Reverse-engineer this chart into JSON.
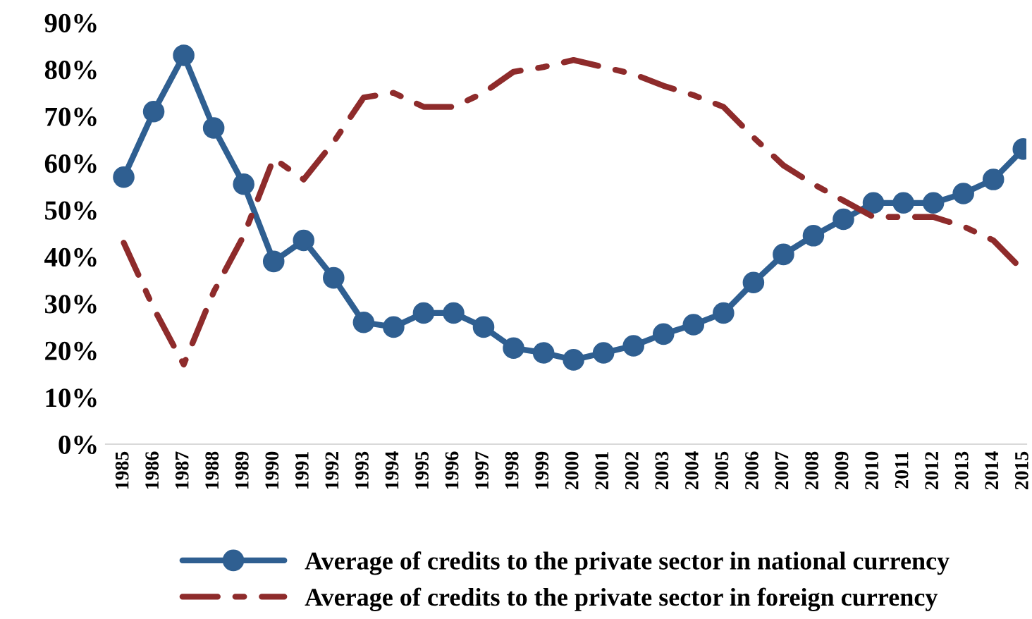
{
  "chart_data": {
    "type": "line",
    "categories": [
      "1985",
      "1986",
      "1987",
      "1988",
      "1989",
      "1990",
      "1991",
      "1992",
      "1993",
      "1994",
      "1995",
      "1996",
      "1997",
      "1998",
      "1999",
      "2000",
      "2001",
      "2002",
      "2003",
      "2004",
      "2005",
      "2006",
      "2007",
      "2008",
      "2009",
      "2010",
      "2011",
      "2012",
      "2013",
      "2014",
      "2015"
    ],
    "series": [
      {
        "name": "Average of credits to the private sector in national currency",
        "color": "#2f5f91",
        "marker": "circle",
        "line_style": "solid",
        "values": [
          57,
          71,
          83,
          67.5,
          55.5,
          39,
          43.5,
          35.5,
          26,
          25,
          28,
          28,
          25,
          20.5,
          19.5,
          18,
          19.5,
          21,
          23.5,
          25.5,
          28,
          34.5,
          40.5,
          44.5,
          48,
          51.5,
          51.5,
          51.5,
          53.5,
          56.5,
          63
        ]
      },
      {
        "name": "Average of credits to the private sector in foreign currency",
        "color": "#8e2b2b",
        "marker": "none",
        "line_style": "dashdot",
        "values": [
          43,
          29,
          17,
          32.5,
          44.5,
          61,
          56.5,
          64.5,
          74,
          75,
          72,
          72,
          75,
          79.5,
          80.5,
          82,
          80.5,
          79,
          76.5,
          74.5,
          72,
          65.5,
          59.5,
          55.5,
          52,
          48.5,
          48.5,
          48.5,
          46.5,
          43.5,
          37
        ]
      }
    ],
    "ylim": [
      0,
      90
    ],
    "yticks": [
      {
        "value": 0,
        "label": "0%"
      },
      {
        "value": 10,
        "label": "10%"
      },
      {
        "value": 20,
        "label": "20%"
      },
      {
        "value": 30,
        "label": "30%"
      },
      {
        "value": 40,
        "label": "40%"
      },
      {
        "value": 50,
        "label": "50%"
      },
      {
        "value": 60,
        "label": "60%"
      },
      {
        "value": 70,
        "label": "70%"
      },
      {
        "value": 80,
        "label": "80%"
      },
      {
        "value": 90,
        "label": "90%"
      }
    ],
    "grid": false,
    "legend": "bottom"
  }
}
